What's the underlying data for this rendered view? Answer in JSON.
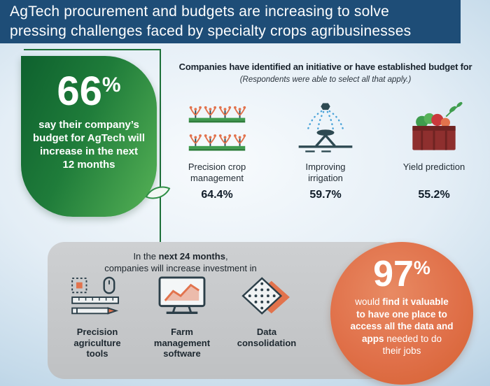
{
  "header": {
    "lines": [
      "AgTech procurement and budgets are increasing to solve",
      "pressing challenges faced by specialty crops agribusinesses"
    ]
  },
  "budget_stat": {
    "value": "66",
    "unit": "%",
    "lines": [
      "say their company’s",
      "budget for AgTech will",
      "increase in the next",
      "12 months"
    ]
  },
  "initiatives": {
    "title": "Companies have identified an initiative or have established budget for",
    "subtitle": "(Respondents were able to select all that apply.)",
    "items": [
      {
        "icon": "crop-rows-icon",
        "label_lines": [
          "Precision crop",
          "management"
        ],
        "value": "64.4%"
      },
      {
        "icon": "irrigation-icon",
        "label_lines": [
          "Improving",
          "irrigation"
        ],
        "value": "59.7%"
      },
      {
        "icon": "harvest-crate-icon",
        "label_lines": [
          "Yield prediction"
        ],
        "value": "55.2%"
      }
    ]
  },
  "investment": {
    "intro": [
      [
        {
          "t": "In the ",
          "b": false
        },
        {
          "t": "next 24 months",
          "b": true
        },
        {
          "t": ",",
          "b": false
        }
      ],
      [
        {
          "t": "companies will increase investment in",
          "b": false
        }
      ]
    ],
    "items": [
      {
        "icon": "precision-tools-icon",
        "label_lines": [
          "Precision",
          "agriculture",
          "tools"
        ]
      },
      {
        "icon": "farm-software-icon",
        "label_lines": [
          "Farm",
          "management",
          "software"
        ]
      },
      {
        "icon": "data-consolidation-icon",
        "label_lines": [
          "Data",
          "consolidation"
        ]
      }
    ]
  },
  "value_stat": {
    "value": "97",
    "unit": "%",
    "lines": [
      [
        {
          "t": "would ",
          "b": false
        },
        {
          "t": "find it valuable",
          "b": true
        }
      ],
      [
        {
          "t": "to have one place to",
          "b": true
        }
      ],
      [
        {
          "t": "access all the data and",
          "b": true
        }
      ],
      [
        {
          "t": "apps",
          "b": true
        },
        {
          "t": " needed to do",
          "b": false
        }
      ],
      [
        {
          "t": "their jobs",
          "b": false
        }
      ]
    ]
  },
  "colors": {
    "header_bg": "#1e4d77",
    "green_dark": "#0e612e",
    "green_light": "#56b256",
    "line_green": "#1c6f38",
    "orange": "#e07049",
    "panel_gray": "#c5c7c9",
    "water_blue": "#4aa3d8",
    "ink": "#1d2830"
  },
  "chart_data": {
    "type": "bar",
    "title": "AgTech procurement and budgets are increasing to solve pressing challenges faced by specialty crops agribusinesses",
    "subtitle": "Companies have identified an initiative or have established budget for (Respondents were able to select all that apply.)",
    "categories": [
      "Precision crop management",
      "Improving irrigation",
      "Yield prediction"
    ],
    "values": [
      64.4,
      59.7,
      55.2
    ],
    "callouts": [
      {
        "value": 66,
        "unit": "%",
        "label": "say their company’s budget for AgTech will increase in the next 12 months"
      },
      {
        "value": 97,
        "unit": "%",
        "label": "would find it valuable to have one place to access all the data and apps needed to do their jobs"
      }
    ],
    "investment_next_24_months": [
      "Precision agriculture tools",
      "Farm management software",
      "Data consolidation"
    ]
  }
}
